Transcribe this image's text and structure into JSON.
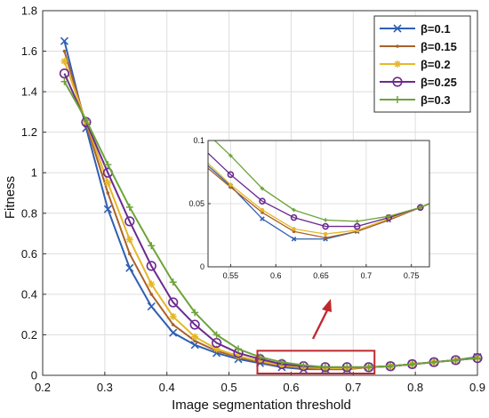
{
  "chart_data": {
    "type": "line",
    "xlabel": "Image segmentation threshold",
    "ylabel": "Fitness",
    "xlim": [
      0.2,
      0.9
    ],
    "ylim": [
      0,
      1.8
    ],
    "xticks": [
      "0.2",
      "0.3",
      "0.4",
      "0.5",
      "0.6",
      "0.7",
      "0.8",
      "0.9"
    ],
    "yticks": [
      "0",
      "0.2",
      "0.4",
      "0.6",
      "0.8",
      "1",
      "1.2",
      "1.4",
      "1.6",
      "1.8"
    ],
    "grid": true,
    "legend_position": "top-right",
    "x": [
      0.235,
      0.27,
      0.305,
      0.34,
      0.375,
      0.41,
      0.445,
      0.48,
      0.515,
      0.55,
      0.585,
      0.62,
      0.655,
      0.69,
      0.725,
      0.76,
      0.795,
      0.83,
      0.865,
      0.9
    ],
    "series": [
      {
        "name": "β=0.1",
        "color": "#2f5fb3",
        "marker": "x",
        "values": [
          1.65,
          1.22,
          0.82,
          0.53,
          0.34,
          0.21,
          0.15,
          0.11,
          0.08,
          0.06,
          0.04,
          0.03,
          0.03,
          0.03,
          0.04,
          0.045,
          0.055,
          0.065,
          0.075,
          0.09
        ]
      },
      {
        "name": "β=0.15",
        "color": "#a9622a",
        "marker": "dot",
        "values": [
          1.6,
          1.24,
          0.9,
          0.6,
          0.4,
          0.25,
          0.17,
          0.12,
          0.09,
          0.065,
          0.045,
          0.035,
          0.03,
          0.03,
          0.04,
          0.045,
          0.055,
          0.065,
          0.075,
          0.085
        ]
      },
      {
        "name": "β=0.2",
        "color": "#e5b82a",
        "marker": "star",
        "values": [
          1.55,
          1.25,
          0.95,
          0.67,
          0.45,
          0.29,
          0.19,
          0.13,
          0.095,
          0.07,
          0.05,
          0.04,
          0.035,
          0.035,
          0.04,
          0.045,
          0.055,
          0.065,
          0.075,
          0.085
        ]
      },
      {
        "name": "β=0.25",
        "color": "#6b2b8f",
        "marker": "circle",
        "values": [
          1.49,
          1.25,
          1.0,
          0.76,
          0.54,
          0.36,
          0.25,
          0.16,
          0.11,
          0.08,
          0.055,
          0.045,
          0.04,
          0.04,
          0.04,
          0.045,
          0.055,
          0.065,
          0.075,
          0.085
        ]
      },
      {
        "name": "β=0.3",
        "color": "#6ea33a",
        "marker": "plus",
        "values": [
          1.45,
          1.26,
          1.04,
          0.83,
          0.64,
          0.46,
          0.31,
          0.2,
          0.13,
          0.09,
          0.065,
          0.05,
          0.04,
          0.04,
          0.04,
          0.045,
          0.055,
          0.065,
          0.075,
          0.085
        ]
      }
    ],
    "inset": {
      "xlim": [
        0.525,
        0.77
      ],
      "ylim": [
        0,
        0.1
      ],
      "xticks": [
        "0.55",
        "0.6",
        "0.65",
        "0.7",
        "0.75"
      ],
      "yticks": [
        "0",
        "0.05",
        "0.1"
      ],
      "x": [
        0.525,
        0.55,
        0.585,
        0.62,
        0.655,
        0.69,
        0.725,
        0.76,
        0.77
      ],
      "series": [
        {
          "name": "β=0.1",
          "values": [
            0.08,
            0.064,
            0.038,
            0.022,
            0.022,
            0.028,
            0.037,
            0.047,
            0.05
          ]
        },
        {
          "name": "β=0.15",
          "values": [
            0.078,
            0.063,
            0.043,
            0.028,
            0.023,
            0.028,
            0.037,
            0.047,
            0.05
          ]
        },
        {
          "name": "β=0.2",
          "values": [
            0.082,
            0.065,
            0.045,
            0.03,
            0.026,
            0.029,
            0.038,
            0.047,
            0.05
          ]
        },
        {
          "name": "β=0.25",
          "values": [
            0.09,
            0.073,
            0.052,
            0.039,
            0.032,
            0.032,
            0.039,
            0.047,
            0.05
          ]
        },
        {
          "name": "β=0.3",
          "values": [
            0.105,
            0.088,
            0.062,
            0.045,
            0.037,
            0.036,
            0.04,
            0.047,
            0.05
          ]
        }
      ]
    },
    "highlight": {
      "x_range": [
        0.55,
        0.73
      ],
      "y_range": [
        0,
        0.13
      ],
      "color": "#c0282e"
    }
  }
}
